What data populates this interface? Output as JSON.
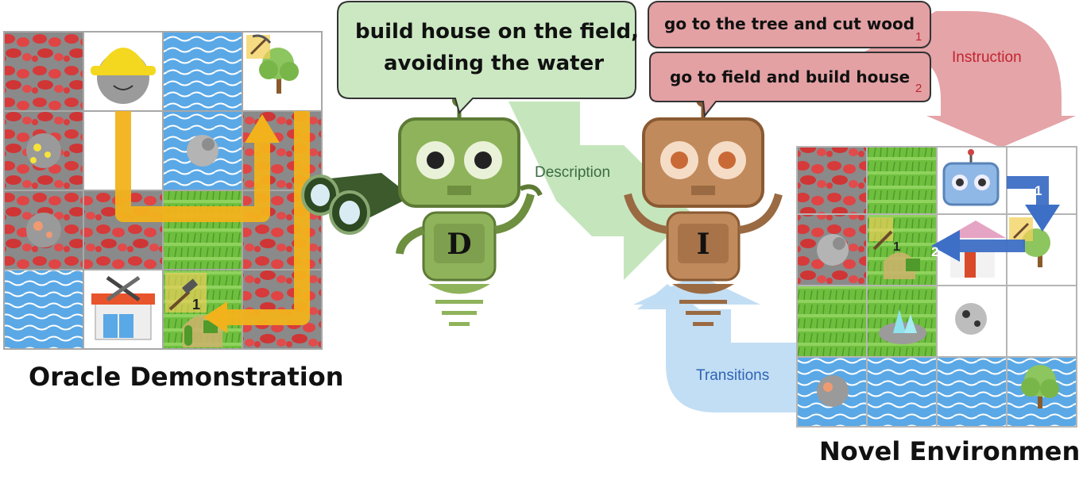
{
  "left_caption": "Oracle Demonstration",
  "right_caption": "Novel Environment",
  "description_bubble": {
    "line1": "build house on the field,",
    "line2": "avoiding the water"
  },
  "instructions": [
    {
      "text": "go to the tree and cut wood",
      "index": "1"
    },
    {
      "text": "go to field and build house",
      "index": "2"
    }
  ],
  "flow_labels": {
    "instruction": "Instruction",
    "description": "Description",
    "transitions": "Transitions"
  },
  "robots": {
    "describer_letter": "D",
    "instructor_letter": "I"
  },
  "grid_markers": {
    "oracle_house_step": "1",
    "novel_house_step": "1",
    "novel_arrow_1": "1",
    "novel_arrow_2": "2"
  },
  "colors": {
    "lava": "#d84a4a",
    "water": "#5aa8e6",
    "field": "#74c045",
    "path_arrow": "#f2b21b",
    "describer_robot": "#7e9f4e",
    "instructor_robot": "#b07a4e",
    "instruction_flow": "#e29a9e",
    "description_flow": "#bfe3b5",
    "transitions_flow": "#bfdcf3",
    "novel_arrow": "#3d6fc6"
  }
}
